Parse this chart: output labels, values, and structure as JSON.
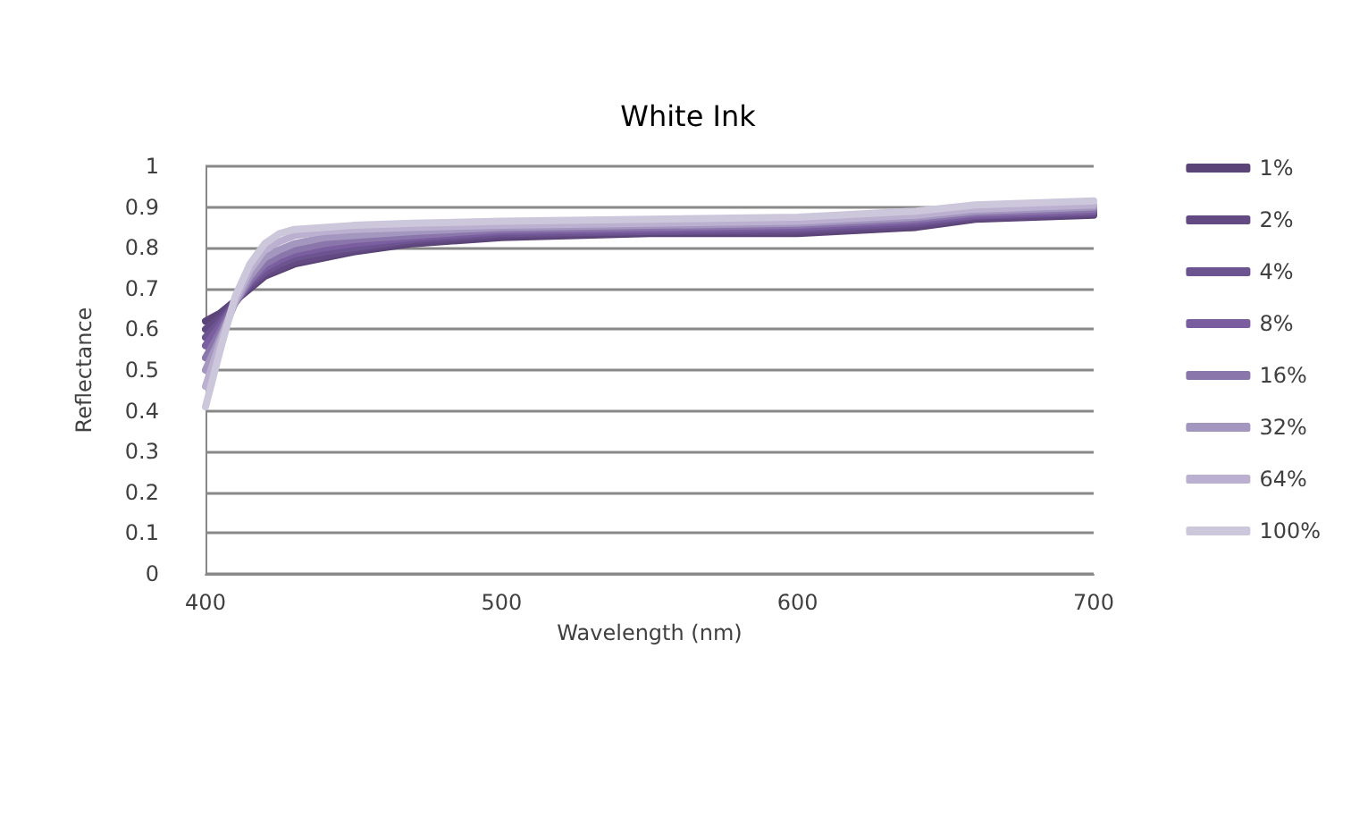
{
  "chart_data": {
    "type": "line",
    "title": "White Ink",
    "xlabel": "Wavelength (nm)",
    "ylabel": "Reflectance",
    "x": [
      400,
      405,
      410,
      415,
      420,
      425,
      430,
      440,
      450,
      470,
      500,
      550,
      600,
      640,
      660,
      700
    ],
    "xlim": [
      400,
      700
    ],
    "xticks": [
      400,
      500,
      600,
      700
    ],
    "ylim": [
      0,
      1
    ],
    "yticks": [
      0,
      0.1,
      0.2,
      0.3,
      0.4,
      0.5,
      0.6,
      0.7,
      0.8,
      0.9,
      1
    ],
    "grid": "y",
    "legend": "right",
    "marker": "none",
    "line_style": "solid",
    "series": [
      {
        "name": "1%",
        "color": "#5b4478",
        "values": [
          0.62,
          0.64,
          0.67,
          0.7,
          0.73,
          0.745,
          0.76,
          0.775,
          0.79,
          0.81,
          0.825,
          0.835,
          0.835,
          0.85,
          0.87,
          0.88
        ]
      },
      {
        "name": "2%",
        "color": "#634a82",
        "values": [
          0.6,
          0.63,
          0.67,
          0.705,
          0.735,
          0.75,
          0.765,
          0.78,
          0.795,
          0.815,
          0.83,
          0.84,
          0.84,
          0.855,
          0.873,
          0.883
        ]
      },
      {
        "name": "4%",
        "color": "#6b5490",
        "values": [
          0.58,
          0.62,
          0.665,
          0.71,
          0.74,
          0.76,
          0.775,
          0.79,
          0.8,
          0.82,
          0.835,
          0.84,
          0.845,
          0.86,
          0.877,
          0.887
        ]
      },
      {
        "name": "8%",
        "color": "#7a5ea0",
        "values": [
          0.56,
          0.61,
          0.665,
          0.715,
          0.75,
          0.77,
          0.785,
          0.8,
          0.81,
          0.825,
          0.84,
          0.845,
          0.85,
          0.865,
          0.88,
          0.89
        ]
      },
      {
        "name": "16%",
        "color": "#8a76aa",
        "values": [
          0.53,
          0.595,
          0.665,
          0.72,
          0.76,
          0.78,
          0.795,
          0.81,
          0.82,
          0.83,
          0.845,
          0.85,
          0.855,
          0.87,
          0.885,
          0.895
        ]
      },
      {
        "name": "32%",
        "color": "#a396bf",
        "values": [
          0.5,
          0.58,
          0.665,
          0.73,
          0.775,
          0.795,
          0.81,
          0.825,
          0.83,
          0.84,
          0.85,
          0.855,
          0.86,
          0.875,
          0.89,
          0.9
        ]
      },
      {
        "name": "64%",
        "color": "#bbb0d0",
        "values": [
          0.46,
          0.57,
          0.67,
          0.745,
          0.795,
          0.815,
          0.83,
          0.84,
          0.845,
          0.85,
          0.855,
          0.86,
          0.865,
          0.88,
          0.895,
          0.905
        ]
      },
      {
        "name": "100%",
        "color": "#cdc7dc",
        "values": [
          0.41,
          0.55,
          0.68,
          0.76,
          0.81,
          0.835,
          0.845,
          0.85,
          0.855,
          0.86,
          0.865,
          0.87,
          0.875,
          0.89,
          0.905,
          0.915
        ]
      }
    ]
  }
}
